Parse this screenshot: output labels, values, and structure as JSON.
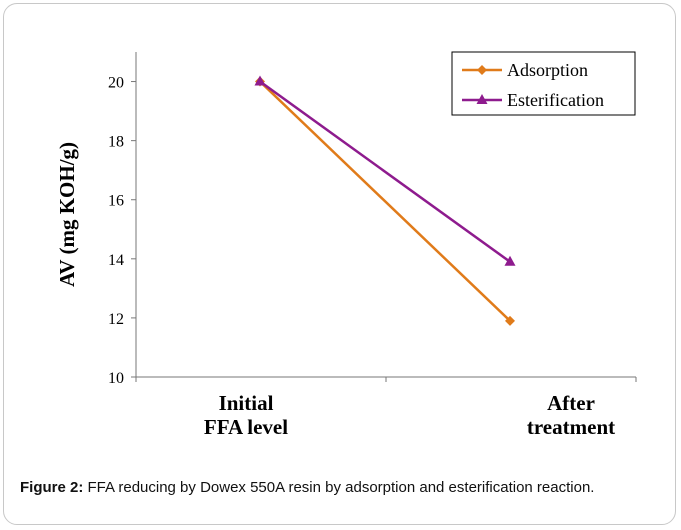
{
  "caption": {
    "label": "Figure 2:",
    "text": " FFA reducing by Dowex 550A resin by adsorption and esterification reaction."
  },
  "chart_data": {
    "type": "line",
    "title": "",
    "xlabel": "",
    "ylabel": "AV (mg KOH/g)",
    "categories": [
      [
        "Initial",
        "FFA level"
      ],
      [
        "After",
        "treatment"
      ]
    ],
    "ylim": [
      10,
      21
    ],
    "yticks": [
      10,
      12,
      14,
      16,
      18,
      20
    ],
    "grid": false,
    "legend_position": "top-right",
    "series": [
      {
        "name": "Adsorption",
        "values": [
          20,
          11.9
        ],
        "color": "#e07b1a",
        "marker": "diamond"
      },
      {
        "name": "Esterification",
        "values": [
          20,
          13.9
        ],
        "color": "#8e1b8e",
        "marker": "triangle"
      }
    ]
  }
}
